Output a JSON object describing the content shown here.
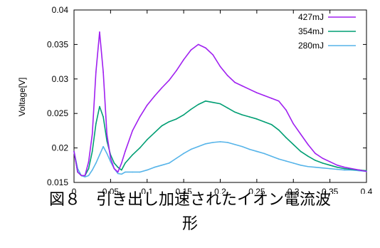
{
  "chart_data": {
    "type": "line",
    "title": "",
    "xlabel": "",
    "ylabel": "Voltage[V]",
    "xlim": [
      0,
      0.4
    ],
    "ylim": [
      0.015,
      0.04
    ],
    "xticks": [
      0,
      0.05,
      0.1,
      0.15,
      0.2,
      0.25,
      0.3,
      0.35,
      0.4
    ],
    "xtick_labels": [
      "0",
      "0.05",
      "0.1",
      "0.15",
      "0.2",
      "0.25",
      "0.3",
      "0.35",
      "0.4"
    ],
    "yticks": [
      0.015,
      0.02,
      0.025,
      0.03,
      0.035,
      0.04
    ],
    "ytick_labels": [
      "0.015",
      "0.02",
      "0.025",
      "0.03",
      "0.035",
      "0.04"
    ],
    "grid": false,
    "legend_position": "top-right",
    "series": [
      {
        "name": "427mJ",
        "color": "#a020f0",
        "x": [
          0,
          0.005,
          0.01,
          0.015,
          0.02,
          0.025,
          0.03,
          0.035,
          0.04,
          0.045,
          0.05,
          0.055,
          0.06,
          0.065,
          0.07,
          0.08,
          0.09,
          0.1,
          0.11,
          0.12,
          0.13,
          0.14,
          0.15,
          0.16,
          0.17,
          0.18,
          0.19,
          0.2,
          0.21,
          0.22,
          0.23,
          0.24,
          0.25,
          0.26,
          0.27,
          0.28,
          0.29,
          0.3,
          0.31,
          0.32,
          0.33,
          0.34,
          0.35,
          0.36,
          0.37,
          0.38,
          0.39,
          0.4
        ],
        "y": [
          0.0195,
          0.0165,
          0.016,
          0.016,
          0.018,
          0.022,
          0.031,
          0.0368,
          0.031,
          0.022,
          0.0185,
          0.017,
          0.0165,
          0.0178,
          0.0195,
          0.0225,
          0.0245,
          0.0262,
          0.0275,
          0.0287,
          0.0298,
          0.0312,
          0.0328,
          0.0342,
          0.035,
          0.0345,
          0.0335,
          0.0318,
          0.0305,
          0.0295,
          0.029,
          0.0285,
          0.028,
          0.0276,
          0.0272,
          0.0268,
          0.0255,
          0.0235,
          0.022,
          0.0205,
          0.0192,
          0.0185,
          0.018,
          0.0175,
          0.0172,
          0.017,
          0.0168,
          0.0166
        ]
      },
      {
        "name": "354mJ",
        "color": "#009e73",
        "x": [
          0,
          0.005,
          0.01,
          0.015,
          0.02,
          0.025,
          0.03,
          0.035,
          0.04,
          0.045,
          0.05,
          0.055,
          0.06,
          0.065,
          0.07,
          0.08,
          0.09,
          0.1,
          0.11,
          0.12,
          0.13,
          0.14,
          0.15,
          0.16,
          0.17,
          0.18,
          0.19,
          0.2,
          0.21,
          0.22,
          0.23,
          0.24,
          0.25,
          0.26,
          0.27,
          0.28,
          0.29,
          0.3,
          0.31,
          0.32,
          0.33,
          0.34,
          0.35,
          0.36,
          0.37,
          0.38,
          0.39,
          0.4
        ],
        "y": [
          0.0195,
          0.0165,
          0.016,
          0.016,
          0.017,
          0.0195,
          0.0235,
          0.026,
          0.0245,
          0.021,
          0.019,
          0.0178,
          0.0172,
          0.0168,
          0.0178,
          0.019,
          0.02,
          0.0212,
          0.0222,
          0.0232,
          0.0238,
          0.0242,
          0.0248,
          0.0256,
          0.0263,
          0.0268,
          0.0266,
          0.0264,
          0.0258,
          0.0252,
          0.0248,
          0.0245,
          0.0242,
          0.0238,
          0.0234,
          0.0226,
          0.0215,
          0.0205,
          0.0195,
          0.0188,
          0.0182,
          0.0178,
          0.0175,
          0.0172,
          0.017,
          0.0169,
          0.0168,
          0.0167
        ]
      },
      {
        "name": "280mJ",
        "color": "#56b4e9",
        "x": [
          0,
          0.005,
          0.01,
          0.015,
          0.02,
          0.025,
          0.03,
          0.035,
          0.04,
          0.045,
          0.05,
          0.055,
          0.06,
          0.065,
          0.07,
          0.08,
          0.09,
          0.1,
          0.11,
          0.12,
          0.13,
          0.14,
          0.15,
          0.16,
          0.17,
          0.18,
          0.19,
          0.2,
          0.21,
          0.22,
          0.23,
          0.24,
          0.25,
          0.26,
          0.27,
          0.28,
          0.29,
          0.3,
          0.31,
          0.32,
          0.33,
          0.34,
          0.35,
          0.36,
          0.37,
          0.38,
          0.39,
          0.4
        ],
        "y": [
          0.0195,
          0.017,
          0.016,
          0.0158,
          0.016,
          0.0168,
          0.0178,
          0.019,
          0.0202,
          0.0192,
          0.018,
          0.017,
          0.0163,
          0.0162,
          0.0165,
          0.0165,
          0.0165,
          0.0168,
          0.0172,
          0.0175,
          0.0178,
          0.0185,
          0.0192,
          0.0198,
          0.0202,
          0.0206,
          0.0208,
          0.0209,
          0.0208,
          0.0205,
          0.0202,
          0.0198,
          0.0195,
          0.0192,
          0.0188,
          0.0184,
          0.0181,
          0.0178,
          0.0175,
          0.0173,
          0.0172,
          0.0171,
          0.017,
          0.0169,
          0.0168,
          0.0168,
          0.0167,
          0.0166
        ]
      }
    ]
  },
  "caption": {
    "line1": "図８　引き出し加速されたイオン電流波",
    "line2": "形"
  }
}
